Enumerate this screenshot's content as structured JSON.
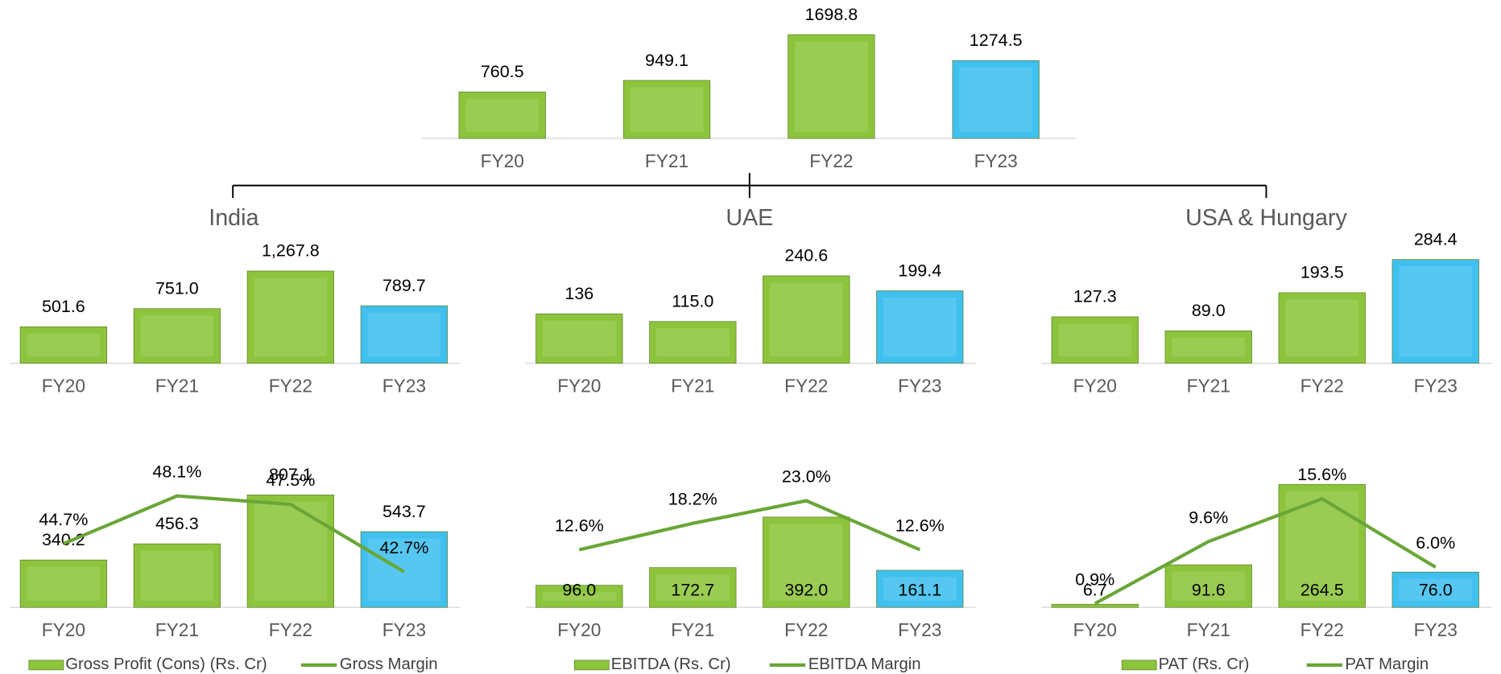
{
  "chart_data": [
    {
      "type": "bar",
      "categories": [
        "FY20",
        "FY21",
        "FY22",
        "FY23"
      ],
      "values": [
        760.5,
        949.1,
        1698.8,
        1274.5
      ],
      "colors": [
        "#8cc43c",
        "#8cc43c",
        "#8cc43c",
        "#3fc0ee"
      ]
    },
    {
      "type": "bar",
      "title": "India",
      "categories": [
        "FY20",
        "FY21",
        "FY22",
        "FY23"
      ],
      "values": [
        501.6,
        751.0,
        1267.8,
        789.7
      ],
      "value_labels": [
        "501.6",
        "751.0",
        "1,267.8",
        "789.7"
      ],
      "colors": [
        "#8cc43c",
        "#8cc43c",
        "#8cc43c",
        "#3fc0ee"
      ]
    },
    {
      "type": "bar",
      "title": "UAE",
      "categories": [
        "FY20",
        "FY21",
        "FY22",
        "FY23"
      ],
      "values": [
        136,
        115.0,
        240.6,
        199.4
      ],
      "value_labels": [
        "136",
        "115.0",
        "240.6",
        "199.4"
      ],
      "colors": [
        "#8cc43c",
        "#8cc43c",
        "#8cc43c",
        "#3fc0ee"
      ]
    },
    {
      "type": "bar",
      "title": "USA & Hungary",
      "categories": [
        "FY20",
        "FY21",
        "FY22",
        "FY23"
      ],
      "values": [
        127.3,
        89.0,
        193.5,
        284.4
      ],
      "value_labels": [
        "127.3",
        "89.0",
        "193.5",
        "284.4"
      ],
      "colors": [
        "#8cc43c",
        "#8cc43c",
        "#8cc43c",
        "#3fc0ee"
      ]
    },
    {
      "type": "combo",
      "categories": [
        "FY20",
        "FY21",
        "FY22",
        "FY23"
      ],
      "series": [
        {
          "name": "Gross Profit (Cons) (Rs. Cr)",
          "color": "#8cc43c",
          "colors": [
            "#8cc43c",
            "#8cc43c",
            "#8cc43c",
            "#3fc0ee"
          ],
          "values": [
            340.2,
            456.3,
            807.1,
            543.7
          ],
          "value_labels": [
            "340.2",
            "456.3",
            "807.1",
            "543.7"
          ]
        },
        {
          "name": "Gross Margin",
          "color": "#6aa637",
          "values": [
            44.7,
            48.1,
            47.5,
            42.7
          ],
          "value_labels": [
            "44.7%",
            "48.1%",
            "47.5%",
            "42.7%"
          ]
        }
      ]
    },
    {
      "type": "combo",
      "categories": [
        "FY20",
        "FY21",
        "FY22",
        "FY23"
      ],
      "series": [
        {
          "name": "EBITDA (Rs. Cr)",
          "color": "#8cc43c",
          "colors": [
            "#8cc43c",
            "#8cc43c",
            "#8cc43c",
            "#3fc0ee"
          ],
          "values": [
            96.0,
            172.7,
            392.0,
            161.1
          ],
          "value_labels": [
            "96.0",
            "172.7",
            "392.0",
            "161.1"
          ]
        },
        {
          "name": "EBITDA Margin",
          "color": "#6aa637",
          "values": [
            12.6,
            18.2,
            23.0,
            12.6
          ],
          "value_labels": [
            "12.6%",
            "18.2%",
            "23.0%",
            "12.6%"
          ]
        }
      ]
    },
    {
      "type": "combo",
      "categories": [
        "FY20",
        "FY21",
        "FY22",
        "FY23"
      ],
      "series": [
        {
          "name": "PAT (Rs. Cr)",
          "color": "#8cc43c",
          "colors": [
            "#8cc43c",
            "#8cc43c",
            "#8cc43c",
            "#3fc0ee"
          ],
          "values": [
            6.7,
            91.6,
            264.5,
            76.0
          ],
          "value_labels": [
            "6.7",
            "91.6",
            "264.5",
            "76.0"
          ]
        },
        {
          "name": "PAT Margin",
          "color": "#6aa637",
          "values": [
            0.9,
            9.6,
            15.6,
            6.0
          ],
          "value_labels": [
            "0.9%",
            "9.6%",
            "15.6%",
            "6.0%"
          ]
        }
      ]
    }
  ]
}
